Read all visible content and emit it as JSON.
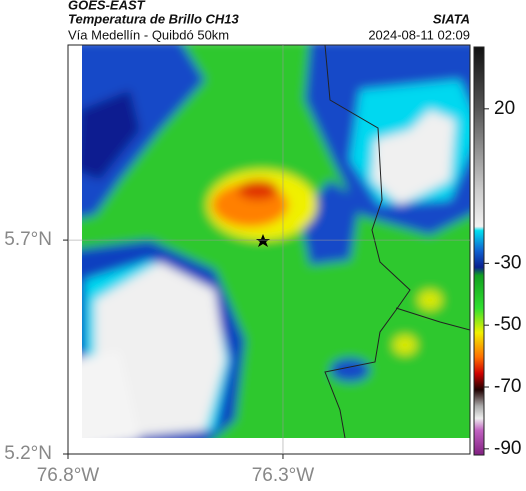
{
  "header": {
    "title": "GOES-EAST",
    "subtitle": "Temperatura de Brillo CH13",
    "source": "SIATA",
    "region": "Vía Medellín - Quibdó 50km",
    "timestamp": "2024-08-11 02:09"
  },
  "map": {
    "xlim": [
      -76.8,
      -75.865
    ],
    "ylim": [
      5.2,
      6.156
    ],
    "xticks": [
      {
        "value": -76.8,
        "label": "76.8°W"
      },
      {
        "value": -76.3,
        "label": "76.3°W"
      }
    ],
    "yticks": [
      {
        "value": 5.7,
        "label": "5.7°N"
      },
      {
        "value": 5.2,
        "label": "5.2°N"
      }
    ],
    "grid": true,
    "colorbar": {
      "lim": [
        -92,
        40
      ],
      "ticks": [
        20,
        -30,
        -50,
        -70,
        -90
      ]
    }
  }
}
